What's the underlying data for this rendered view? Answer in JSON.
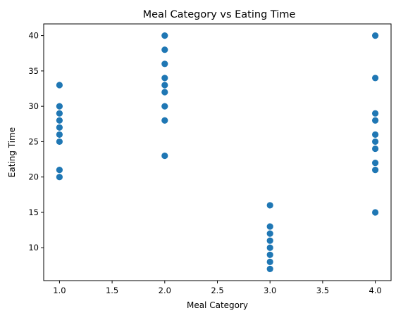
{
  "chart_data": {
    "type": "scatter",
    "title": "Meal Category vs Eating Time",
    "xlabel": "Meal Category",
    "ylabel": "Eating Time",
    "xlim": [
      0.85,
      4.15
    ],
    "ylim": [
      5.35,
      41.65
    ],
    "xticks": [
      1.0,
      1.5,
      2.0,
      2.5,
      3.0,
      3.5,
      4.0
    ],
    "xtick_labels": [
      "1.0",
      "1.5",
      "2.0",
      "2.5",
      "3.0",
      "3.5",
      "4.0"
    ],
    "yticks": [
      10,
      15,
      20,
      25,
      30,
      35,
      40
    ],
    "ytick_labels": [
      "10",
      "15",
      "20",
      "25",
      "30",
      "35",
      "40"
    ],
    "grid": false,
    "color": "#1f77b4",
    "points": [
      {
        "x": 1,
        "y": 33
      },
      {
        "x": 1,
        "y": 30
      },
      {
        "x": 1,
        "y": 29
      },
      {
        "x": 1,
        "y": 28
      },
      {
        "x": 1,
        "y": 27
      },
      {
        "x": 1,
        "y": 26
      },
      {
        "x": 1,
        "y": 25
      },
      {
        "x": 1,
        "y": 21
      },
      {
        "x": 1,
        "y": 20
      },
      {
        "x": 2,
        "y": 40
      },
      {
        "x": 2,
        "y": 38
      },
      {
        "x": 2,
        "y": 36
      },
      {
        "x": 2,
        "y": 34
      },
      {
        "x": 2,
        "y": 33
      },
      {
        "x": 2,
        "y": 32
      },
      {
        "x": 2,
        "y": 30
      },
      {
        "x": 2,
        "y": 28
      },
      {
        "x": 2,
        "y": 23
      },
      {
        "x": 3,
        "y": 16
      },
      {
        "x": 3,
        "y": 13
      },
      {
        "x": 3,
        "y": 12
      },
      {
        "x": 3,
        "y": 11
      },
      {
        "x": 3,
        "y": 10
      },
      {
        "x": 3,
        "y": 9
      },
      {
        "x": 3,
        "y": 8
      },
      {
        "x": 3,
        "y": 7
      },
      {
        "x": 4,
        "y": 40
      },
      {
        "x": 4,
        "y": 34
      },
      {
        "x": 4,
        "y": 29
      },
      {
        "x": 4,
        "y": 28
      },
      {
        "x": 4,
        "y": 26
      },
      {
        "x": 4,
        "y": 25
      },
      {
        "x": 4,
        "y": 24
      },
      {
        "x": 4,
        "y": 22
      },
      {
        "x": 4,
        "y": 21
      },
      {
        "x": 4,
        "y": 15
      }
    ]
  }
}
